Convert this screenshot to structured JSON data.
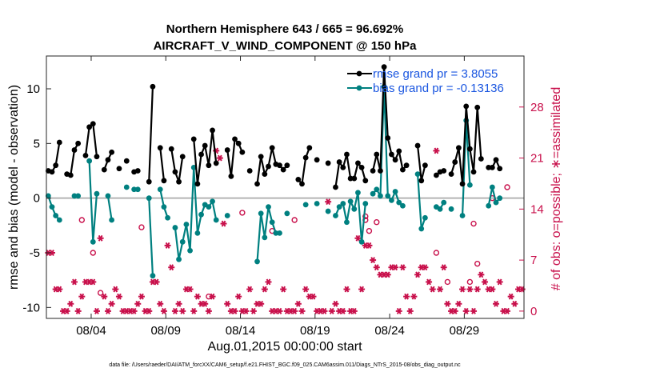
{
  "chart_data": {
    "type": "line",
    "title_line1": "Northern Hemisphere 643 / 665 = 96.692%",
    "title_line2": "AIRCRAFT_V_WIND_COMPONENT @ 150 hPa",
    "xlabel": "Aug.01,2015 00:00:00 start",
    "ylabel": "rmse and bias (model - observation)",
    "ylabel_right": "# of obs: o=possible; ∗=assimilated",
    "xlim": [
      1.0,
      33.0
    ],
    "ylim": [
      -11,
      13
    ],
    "ylim_right": [
      -1,
      35
    ],
    "x_ticks": [
      4,
      9,
      14,
      19,
      24,
      29
    ],
    "x_tick_labels": [
      "08/04",
      "08/09",
      "08/14",
      "08/19",
      "08/24",
      "08/29"
    ],
    "y_ticks": [
      -10,
      -5,
      0,
      5,
      10
    ],
    "y_tick_labels": [
      "-10",
      "-5",
      "0",
      "5",
      "10"
    ],
    "y_right_ticks": [
      0,
      7,
      14,
      21,
      28
    ],
    "y_right_tick_labels": [
      "0",
      "7",
      "14",
      "21",
      "28"
    ],
    "legend": [
      {
        "name": "rmse grand pr = 3.8055",
        "color": "#000000"
      },
      {
        "name": "bias grand pr = -0.13136",
        "color": "#008080"
      }
    ],
    "colors": {
      "rmse": "#000000",
      "bias": "#008080",
      "obs": "#c8104b",
      "zero_line": "#b4b4b4"
    },
    "footnote": "data file: /Users/raeder/DAI/ATM_forcXX/CAM6_setup/f.e21.FHIST_BGC.f09_025.CAM6assim.011/Diags_NTrS_2015-08/obs_diag_output.nc",
    "series": [
      {
        "name": "rmse",
        "x": [
          1.125,
          1.375,
          1.625,
          1.875,
          2.125,
          2.375,
          2.625,
          2.875,
          3.125,
          3.375,
          3.625,
          3.875,
          4.125,
          4.375,
          4.625,
          4.875,
          5.125,
          5.375,
          5.625,
          5.875,
          6.125,
          6.375,
          6.625,
          6.875,
          7.125,
          7.375,
          7.625,
          7.875,
          8.125,
          8.375,
          8.625,
          8.875,
          9.125,
          9.375,
          9.625,
          9.875,
          10.125,
          10.375,
          10.625,
          10.875,
          11.125,
          11.375,
          11.625,
          11.875,
          12.125,
          12.375,
          12.625,
          12.875,
          13.125,
          13.375,
          13.625,
          13.875,
          14.125,
          14.375,
          14.625,
          14.875,
          15.125,
          15.375,
          15.625,
          15.875,
          16.125,
          16.375,
          16.625,
          16.875,
          17.125,
          17.375,
          17.625,
          17.875,
          18.125,
          18.375,
          18.625,
          18.875,
          19.125,
          19.375,
          19.625,
          19.875,
          20.125,
          20.375,
          20.625,
          20.875,
          21.125,
          21.375,
          21.625,
          21.875,
          22.125,
          22.375,
          22.625,
          22.875,
          23.125,
          23.375,
          23.625,
          23.875,
          24.125,
          24.375,
          24.625,
          24.875,
          25.125,
          25.375,
          25.625,
          25.875,
          26.125,
          26.375,
          26.625,
          26.875,
          27.125,
          27.375,
          27.625,
          27.875,
          28.125,
          28.375,
          28.625,
          28.875,
          29.125,
          29.375,
          29.625,
          29.875,
          30.125,
          30.375,
          30.625,
          30.875,
          31.125,
          31.375,
          31.625,
          31.875,
          32.125,
          32.375,
          32.625,
          32.875
        ],
        "values": [
          2.5,
          2.4,
          3.0,
          5.1,
          null,
          2.2,
          2.1,
          4.4,
          5.0,
          null,
          3.9,
          6.5,
          6.8,
          3.8,
          null,
          2.6,
          3.5,
          4.2,
          null,
          2.7,
          null,
          3.4,
          null,
          2.4,
          2.5,
          null,
          null,
          1.5,
          10.2,
          null,
          4.6,
          1.6,
          null,
          4.5,
          2.4,
          1.5,
          3.8,
          null,
          null,
          5.4,
          1.3,
          4.0,
          4.8,
          3.0,
          6.2,
          3.2,
          null,
          null,
          4.4,
          2.0,
          5.4,
          5.0,
          4.2,
          null,
          2.5,
          null,
          1.3,
          3.8,
          2.2,
          2.9,
          4.6,
          3.1,
          3.0,
          2.6,
          3.0,
          null,
          null,
          1.7,
          1.3,
          3.7,
          4.6,
          null,
          3.5,
          null,
          null,
          3.2,
          null,
          1.0,
          3.3,
          2.8,
          4.0,
          1.8,
          1.8,
          3.2,
          2.8,
          1.6,
          null,
          2.5,
          4.0,
          2.5,
          12.0,
          5.5,
          4.0,
          3.5,
          4.3,
          2.6,
          3.0,
          null,
          null,
          4.8,
          1.6,
          3.0,
          null,
          null,
          2.1,
          2.4,
          2.5,
          null,
          2.2,
          3.3,
          4.6,
          1.3,
          8.4,
          4.5,
          2.4,
          8.3,
          3.6,
          null,
          2.8,
          2.8,
          3.5,
          2.7,
          null,
          null,
          null,
          null,
          null,
          null
        ]
      },
      {
        "name": "bias",
        "x": [
          1.125,
          1.375,
          1.625,
          1.875,
          2.125,
          2.375,
          2.625,
          2.875,
          3.125,
          3.375,
          3.625,
          3.875,
          4.125,
          4.375,
          4.625,
          4.875,
          5.125,
          5.375,
          5.625,
          5.875,
          6.125,
          6.375,
          6.625,
          6.875,
          7.125,
          7.375,
          7.625,
          7.875,
          8.125,
          8.375,
          8.625,
          8.875,
          9.125,
          9.375,
          9.625,
          9.875,
          10.125,
          10.375,
          10.625,
          10.875,
          11.125,
          11.375,
          11.625,
          11.875,
          12.125,
          12.375,
          12.625,
          12.875,
          13.125,
          13.375,
          13.625,
          13.875,
          14.125,
          14.375,
          14.625,
          14.875,
          15.125,
          15.375,
          15.625,
          15.875,
          16.125,
          16.375,
          16.625,
          16.875,
          17.125,
          17.375,
          17.625,
          17.875,
          18.125,
          18.375,
          18.625,
          18.875,
          19.125,
          19.375,
          19.625,
          19.875,
          20.125,
          20.375,
          20.625,
          20.875,
          21.125,
          21.375,
          21.625,
          21.875,
          22.125,
          22.375,
          22.625,
          22.875,
          23.125,
          23.375,
          23.625,
          23.875,
          24.125,
          24.375,
          24.625,
          24.875,
          25.125,
          25.375,
          25.625,
          25.875,
          26.125,
          26.375,
          26.625,
          26.875,
          27.125,
          27.375,
          27.625,
          27.875,
          28.125,
          28.375,
          28.625,
          28.875,
          29.125,
          29.375,
          29.625,
          29.875,
          30.125,
          30.375,
          30.625,
          30.875,
          31.125,
          31.375,
          31.625,
          31.875,
          32.125,
          32.375,
          32.625,
          32.875
        ],
        "values": [
          0.2,
          -0.8,
          -1.6,
          -2.0,
          null,
          null,
          null,
          0.2,
          0.2,
          null,
          null,
          3.4,
          -4.0,
          0.4,
          null,
          null,
          0.2,
          -2.0,
          null,
          null,
          null,
          1.0,
          null,
          0.8,
          0.8,
          null,
          null,
          0.0,
          -7.1,
          null,
          0.8,
          -0.8,
          -1.8,
          null,
          -2.7,
          -5.6,
          -4.0,
          -2.4,
          -4.8,
          2.8,
          -3.2,
          -1.5,
          -0.6,
          -0.8,
          -0.3,
          -2.0,
          null,
          null,
          -1.6,
          null,
          null,
          null,
          null,
          null,
          null,
          null,
          -5.8,
          -1.4,
          -3.6,
          -0.8,
          -2.2,
          -3.2,
          -3.2,
          null,
          -1.4,
          null,
          null,
          null,
          null,
          -0.6,
          null,
          null,
          -0.5,
          null,
          null,
          -1.2,
          null,
          -1.6,
          -0.8,
          -0.5,
          -2.2,
          -0.3,
          -1.0,
          0.5,
          -4.0,
          -0.5,
          null,
          0.4,
          0.8,
          0.2,
          10.2,
          0.2,
          -0.2,
          0.6,
          -0.4,
          -0.7,
          null,
          null,
          null,
          2.2,
          -2.8,
          -1.8,
          null,
          null,
          -0.8,
          -1.0,
          -0.4,
          null,
          -1.0,
          null,
          null,
          -1.6,
          7.1,
          1.2,
          null,
          null,
          null,
          null,
          -0.7,
          1.0,
          -0.4,
          0.0,
          null,
          null,
          null,
          null,
          null,
          null
        ]
      },
      {
        "name": "obs_possible",
        "x": [
          3.375,
          4.125,
          4.625,
          7.375,
          11.875,
          14.125,
          16.125,
          17.625,
          22.375,
          22.375,
          22.625,
          23.125,
          27.125,
          27.875,
          29.375,
          29.625,
          29.875,
          30.875,
          31.875
        ],
        "values": [
          12.5,
          8,
          2.5,
          11.5,
          2,
          13.5,
          11,
          12.5,
          12.5,
          13,
          11,
          12.2,
          8,
          4,
          4,
          12,
          6.5,
          15.5,
          17
        ]
      },
      {
        "name": "obs_assimilated",
        "x": [
          1.125,
          1.375,
          1.625,
          1.875,
          2.125,
          2.375,
          2.625,
          2.875,
          3.125,
          3.375,
          3.625,
          3.875,
          4.125,
          4.375,
          4.625,
          4.875,
          5.125,
          5.375,
          5.625,
          5.875,
          6.125,
          6.375,
          6.625,
          6.875,
          7.125,
          7.375,
          7.625,
          7.875,
          8.125,
          8.375,
          8.625,
          8.875,
          9.125,
          9.375,
          9.625,
          9.875,
          10.125,
          10.375,
          10.625,
          10.875,
          11.125,
          11.375,
          11.625,
          11.875,
          12.125,
          12.375,
          12.625,
          12.875,
          13.125,
          13.375,
          13.625,
          13.875,
          14.125,
          14.375,
          14.625,
          14.875,
          15.125,
          15.375,
          15.625,
          15.875,
          16.125,
          16.375,
          16.625,
          16.875,
          17.125,
          17.375,
          17.625,
          17.875,
          18.125,
          18.375,
          18.625,
          18.875,
          19.125,
          19.375,
          19.625,
          19.875,
          20.125,
          20.375,
          20.625,
          20.875,
          21.125,
          21.375,
          21.625,
          21.875,
          22.125,
          22.375,
          22.625,
          22.875,
          23.125,
          23.375,
          23.625,
          23.875,
          24.125,
          24.375,
          24.625,
          24.875,
          25.125,
          25.375,
          25.625,
          25.875,
          26.125,
          26.375,
          26.625,
          26.875,
          27.125,
          27.375,
          27.625,
          27.875,
          28.125,
          28.375,
          28.625,
          28.875,
          29.125,
          29.375,
          29.625,
          29.875,
          30.125,
          30.375,
          30.625,
          30.875,
          31.125,
          31.375,
          31.625,
          31.875,
          32.125,
          32.375,
          32.625,
          32.875
        ],
        "values": [
          8,
          8,
          3,
          3,
          0,
          0,
          1,
          4,
          0,
          2,
          4,
          4,
          4,
          0,
          10,
          2,
          0,
          1,
          3,
          2,
          0,
          0,
          0,
          0,
          1,
          2,
          0,
          0,
          4,
          4,
          1,
          0,
          9,
          6,
          0,
          1,
          0,
          3,
          3,
          0,
          2,
          1,
          1,
          0,
          2,
          22,
          21,
          12,
          1,
          0,
          0,
          2,
          0,
          0,
          3,
          0,
          1,
          1,
          3,
          4,
          0,
          0,
          0,
          3,
          0,
          0,
          0,
          1,
          0,
          3,
          2,
          2,
          0,
          0,
          0,
          15,
          0,
          1,
          0,
          0,
          3,
          0,
          0,
          10,
          3,
          9,
          9,
          7,
          6,
          5,
          5,
          5,
          6,
          6,
          0,
          6,
          2,
          0,
          2,
          5,
          6,
          6,
          4,
          3,
          22,
          3,
          6,
          1,
          0,
          0,
          1,
          3,
          0,
          3,
          0,
          3,
          5,
          4,
          3,
          3,
          1,
          4,
          0,
          0,
          2,
          1,
          3,
          3
        ]
      }
    ]
  }
}
